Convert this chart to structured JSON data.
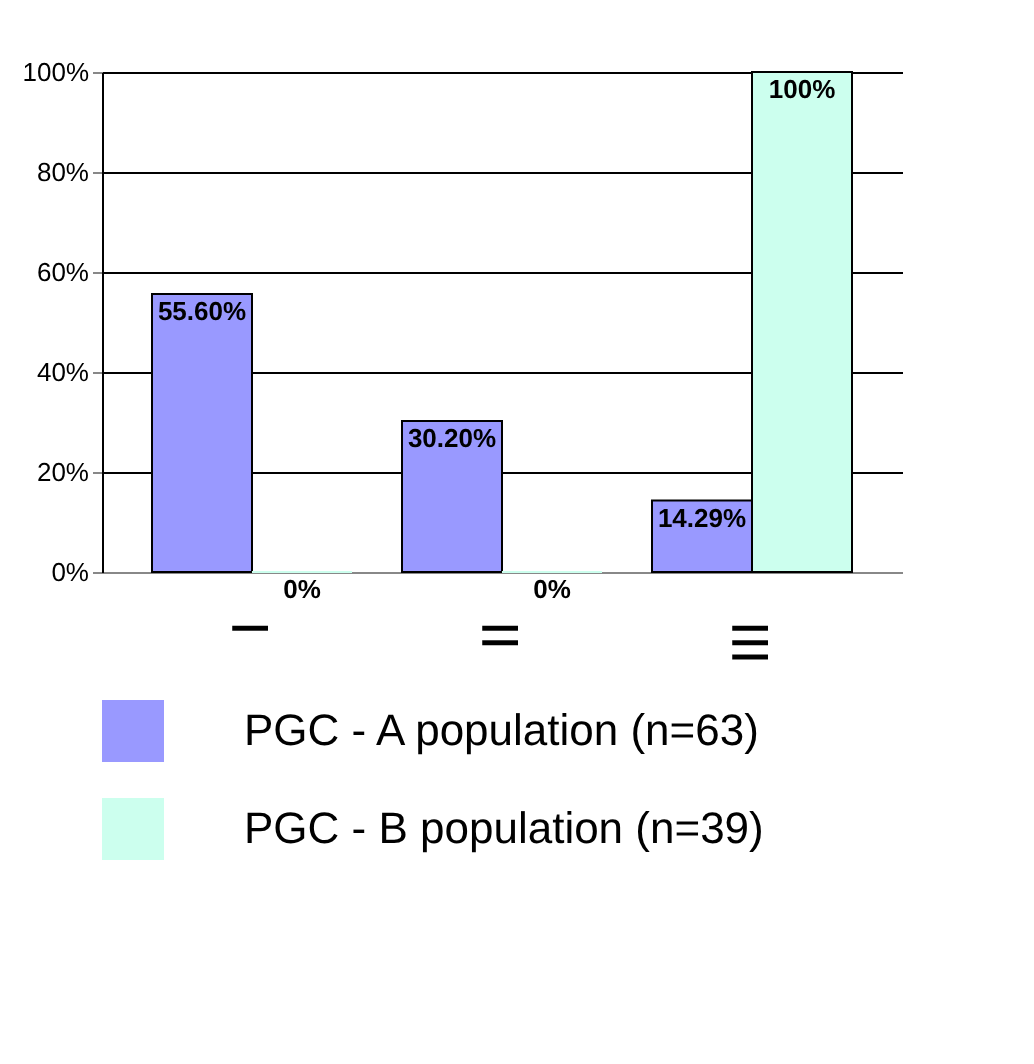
{
  "chart_data": {
    "type": "bar",
    "categories": [
      "I",
      "II",
      "III"
    ],
    "series": [
      {
        "name": "PGC - A population (n=63)",
        "color": "#9999ff",
        "values": [
          55.6,
          30.2,
          14.29
        ],
        "value_labels": [
          "55.60%",
          "30.20%",
          "14.29%"
        ]
      },
      {
        "name": "PGC - B population (n=39)",
        "color": "#ccffee",
        "values": [
          0,
          0,
          100
        ],
        "value_labels": [
          "0%",
          "0%",
          "100%"
        ]
      }
    ],
    "ylim": [
      0,
      100
    ],
    "yticks": [
      {
        "value": 0,
        "label": "0%"
      },
      {
        "value": 20,
        "label": "20%"
      },
      {
        "value": 40,
        "label": "40%"
      },
      {
        "value": 60,
        "label": "60%"
      },
      {
        "value": 80,
        "label": "80%"
      },
      {
        "value": 100,
        "label": "100%"
      }
    ],
    "grid": "y",
    "legend": "bottom"
  }
}
